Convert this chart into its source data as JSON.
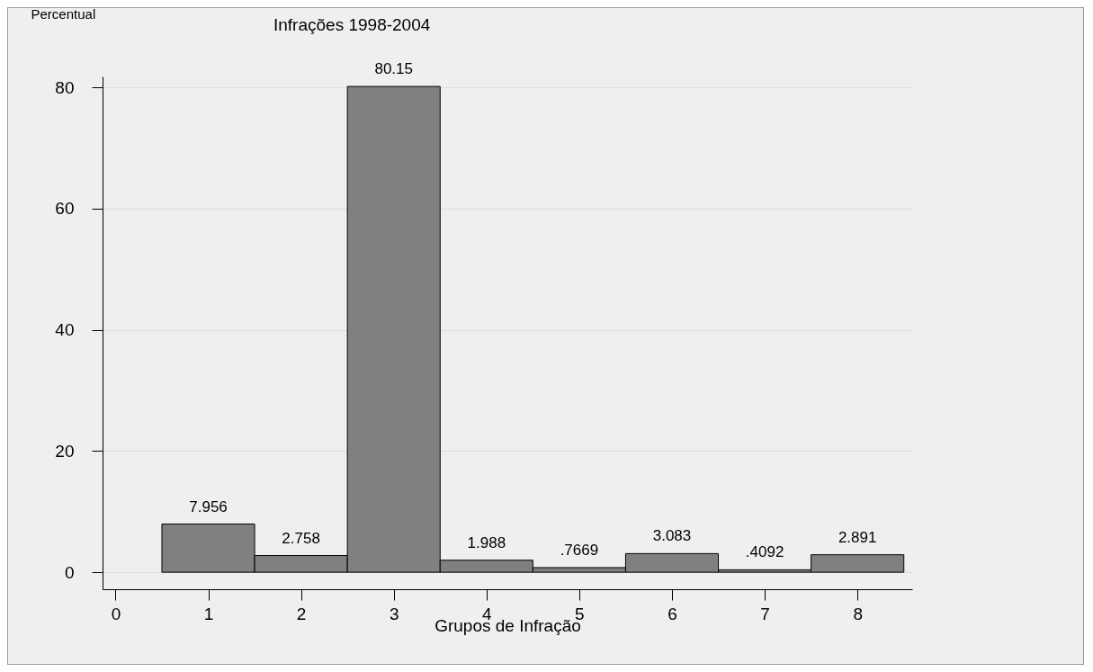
{
  "chart_data": {
    "type": "histogram",
    "title": "Infrações 1998-2004",
    "xlabel": "Grupos de Infração",
    "ylabel": "Percentual",
    "bins": [
      0.5,
      1.5,
      2.5,
      3.5,
      4.5,
      5.5,
      6.5,
      7.5,
      8.5
    ],
    "values": [
      7.956,
      2.758,
      80.15,
      1.988,
      0.7669,
      3.083,
      0.4092,
      2.891
    ],
    "value_labels": [
      "7.956",
      "2.758",
      "80.15",
      "1.988",
      ".7669",
      "3.083",
      ".4092",
      "2.891"
    ],
    "color": "#808080",
    "xlim": [
      -0.14,
      8.59
    ],
    "xticks": [
      0,
      1,
      2,
      3,
      4,
      5,
      6,
      7,
      8
    ],
    "ylim": [
      -2.8,
      81.8
    ],
    "yticks": [
      0,
      20,
      40,
      60,
      80
    ],
    "grid": "y"
  }
}
